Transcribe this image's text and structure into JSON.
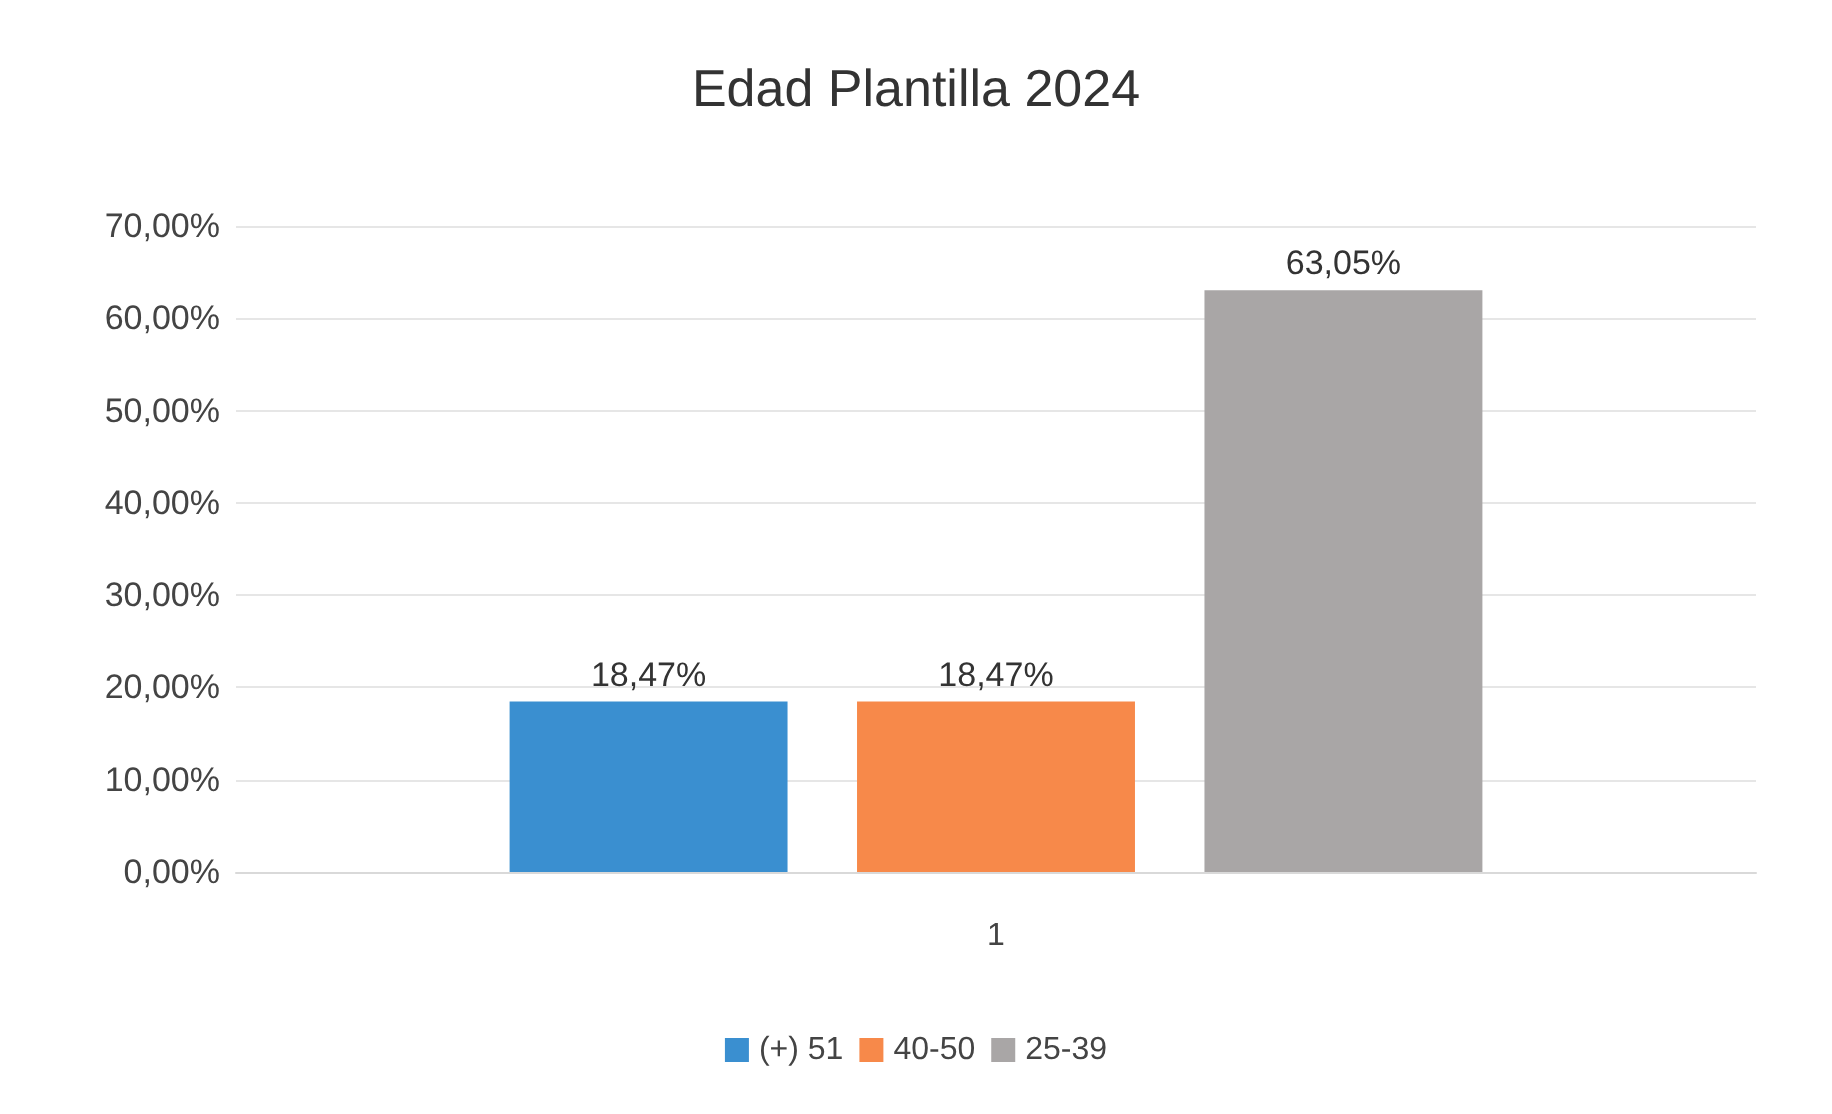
{
  "chart_data": {
    "type": "bar",
    "title": "Edad Plantilla 2024",
    "categories": [
      "1"
    ],
    "series": [
      {
        "name": "(+) 51",
        "color": "#3a8fd0",
        "values": [
          18.47
        ],
        "value_labels": [
          "18,47%"
        ]
      },
      {
        "name": "40-50",
        "color": "#f7894a",
        "values": [
          18.47
        ],
        "value_labels": [
          "18,47%"
        ]
      },
      {
        "name": "25-39",
        "color": "#a9a6a6",
        "values": [
          63.05
        ],
        "value_labels": [
          "63,05%"
        ]
      }
    ],
    "ylim": [
      0,
      70
    ],
    "yticks": [
      {
        "value": 0,
        "label": "0,00%"
      },
      {
        "value": 10,
        "label": "10,00%"
      },
      {
        "value": 20,
        "label": "20,00%"
      },
      {
        "value": 30,
        "label": "30,00%"
      },
      {
        "value": 40,
        "label": "40,00%"
      },
      {
        "value": 50,
        "label": "50,00%"
      },
      {
        "value": 60,
        "label": "60,00%"
      },
      {
        "value": 70,
        "label": "70,00%"
      }
    ],
    "grid": "y",
    "legend": "bottom"
  }
}
